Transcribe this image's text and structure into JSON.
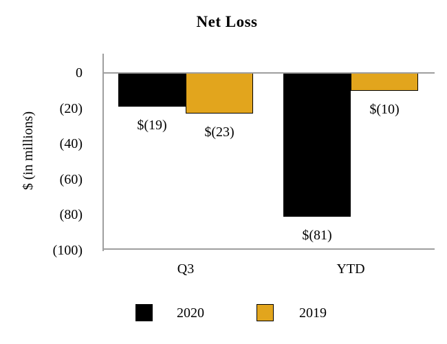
{
  "chart_data": {
    "type": "bar",
    "title": "Net Loss",
    "xlabel": "",
    "ylabel": "$ (in millions)",
    "categories": [
      "Q3",
      "YTD"
    ],
    "series": [
      {
        "name": "2020",
        "color": "#000000",
        "border_color": "",
        "values": [
          -19,
          -81
        ],
        "data_labels": [
          "$(19)",
          "$(81)"
        ]
      },
      {
        "name": "2019",
        "color": "#E2A51D",
        "border_color": "#000000",
        "values": [
          -23,
          -10
        ],
        "data_labels": [
          "$(23)",
          "$(10)"
        ]
      }
    ],
    "ylim": [
      -100,
      0
    ],
    "yticks": [
      {
        "value": 0,
        "label": "0"
      },
      {
        "value": -20,
        "label": "(20)"
      },
      {
        "value": -40,
        "label": "(40)"
      },
      {
        "value": -60,
        "label": "(60)"
      },
      {
        "value": -80,
        "label": "(80)"
      },
      {
        "value": -100,
        "label": "(100)"
      }
    ],
    "grid": false,
    "legend_position": "bottom",
    "legend": [
      "2020",
      "2019"
    ]
  },
  "colors": {
    "axis_line": "#9E9E9E",
    "background": "#FFFFFF",
    "text": "#000000"
  }
}
